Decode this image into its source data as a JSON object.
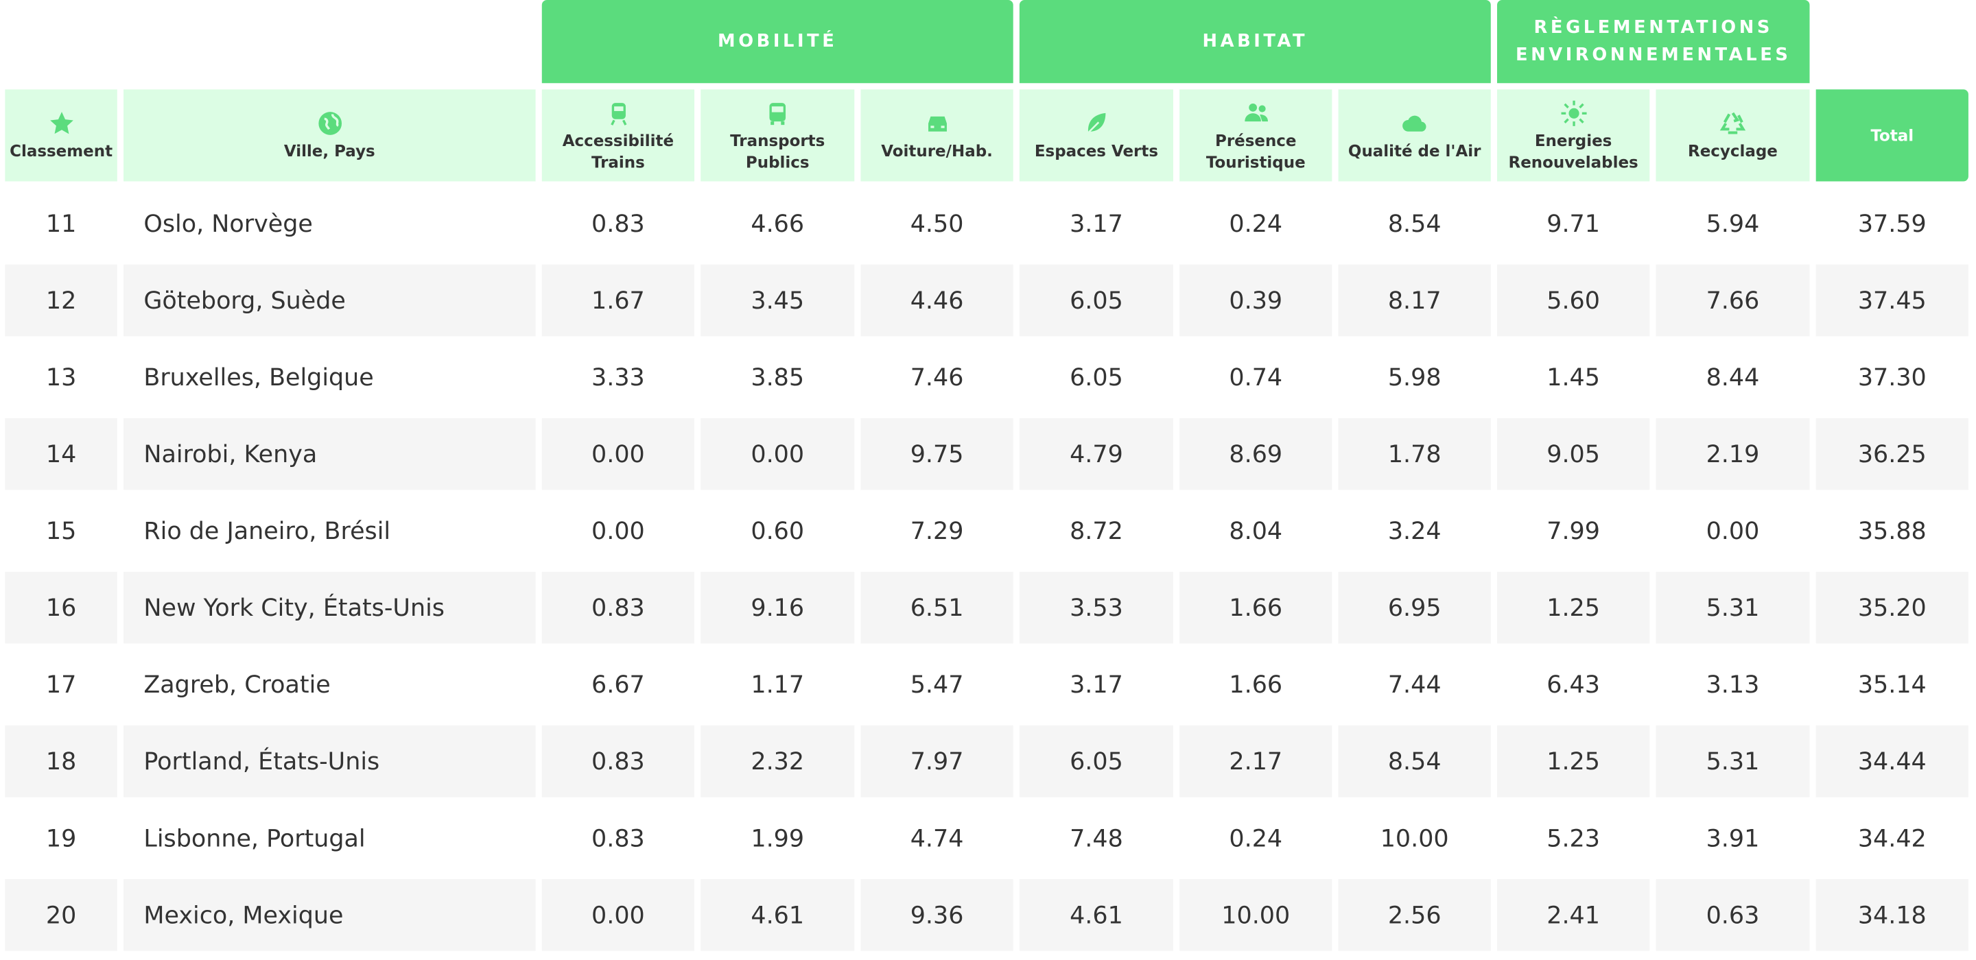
{
  "table": {
    "groups": [
      "MOBILITÉ",
      "HABITAT",
      "RÈGLEMENTATIONS ENVIRONNEMENTALES"
    ],
    "columns": [
      "Classement",
      "Ville, Pays",
      "Accessibilité Trains",
      "Transports Publics",
      "Voiture/Hab.",
      "Espaces Verts",
      "Présence Touristique",
      "Qualité de l'Air",
      "Energies Renouvelables",
      "Recyclage",
      "Total"
    ],
    "rows": [
      [
        "11",
        "Oslo, Norvège",
        "0.83",
        "4.66",
        "4.50",
        "3.17",
        "0.24",
        "8.54",
        "9.71",
        "5.94",
        "37.59"
      ],
      [
        "12",
        "Göteborg, Suède",
        "1.67",
        "3.45",
        "4.46",
        "6.05",
        "0.39",
        "8.17",
        "5.60",
        "7.66",
        "37.45"
      ],
      [
        "13",
        "Bruxelles, Belgique",
        "3.33",
        "3.85",
        "7.46",
        "6.05",
        "0.74",
        "5.98",
        "1.45",
        "8.44",
        "37.30"
      ],
      [
        "14",
        "Nairobi, Kenya",
        "0.00",
        "0.00",
        "9.75",
        "4.79",
        "8.69",
        "1.78",
        "9.05",
        "2.19",
        "36.25"
      ],
      [
        "15",
        "Rio de Janeiro, Brésil",
        "0.00",
        "0.60",
        "7.29",
        "8.72",
        "8.04",
        "3.24",
        "7.99",
        "0.00",
        "35.88"
      ],
      [
        "16",
        "New York City, États-Unis",
        "0.83",
        "9.16",
        "6.51",
        "3.53",
        "1.66",
        "6.95",
        "1.25",
        "5.31",
        "35.20"
      ],
      [
        "17",
        "Zagreb, Croatie",
        "6.67",
        "1.17",
        "5.47",
        "3.17",
        "1.66",
        "7.44",
        "6.43",
        "3.13",
        "35.14"
      ],
      [
        "18",
        "Portland, États-Unis",
        "0.83",
        "2.32",
        "7.97",
        "6.05",
        "2.17",
        "8.54",
        "1.25",
        "5.31",
        "34.44"
      ],
      [
        "19",
        "Lisbonne, Portugal",
        "0.83",
        "1.99",
        "4.74",
        "7.48",
        "0.24",
        "10.00",
        "5.23",
        "3.91",
        "34.42"
      ],
      [
        "20",
        "Mexico, Mexique",
        "0.00",
        "4.61",
        "9.36",
        "4.61",
        "10.00",
        "2.56",
        "2.41",
        "0.63",
        "34.18"
      ]
    ]
  }
}
